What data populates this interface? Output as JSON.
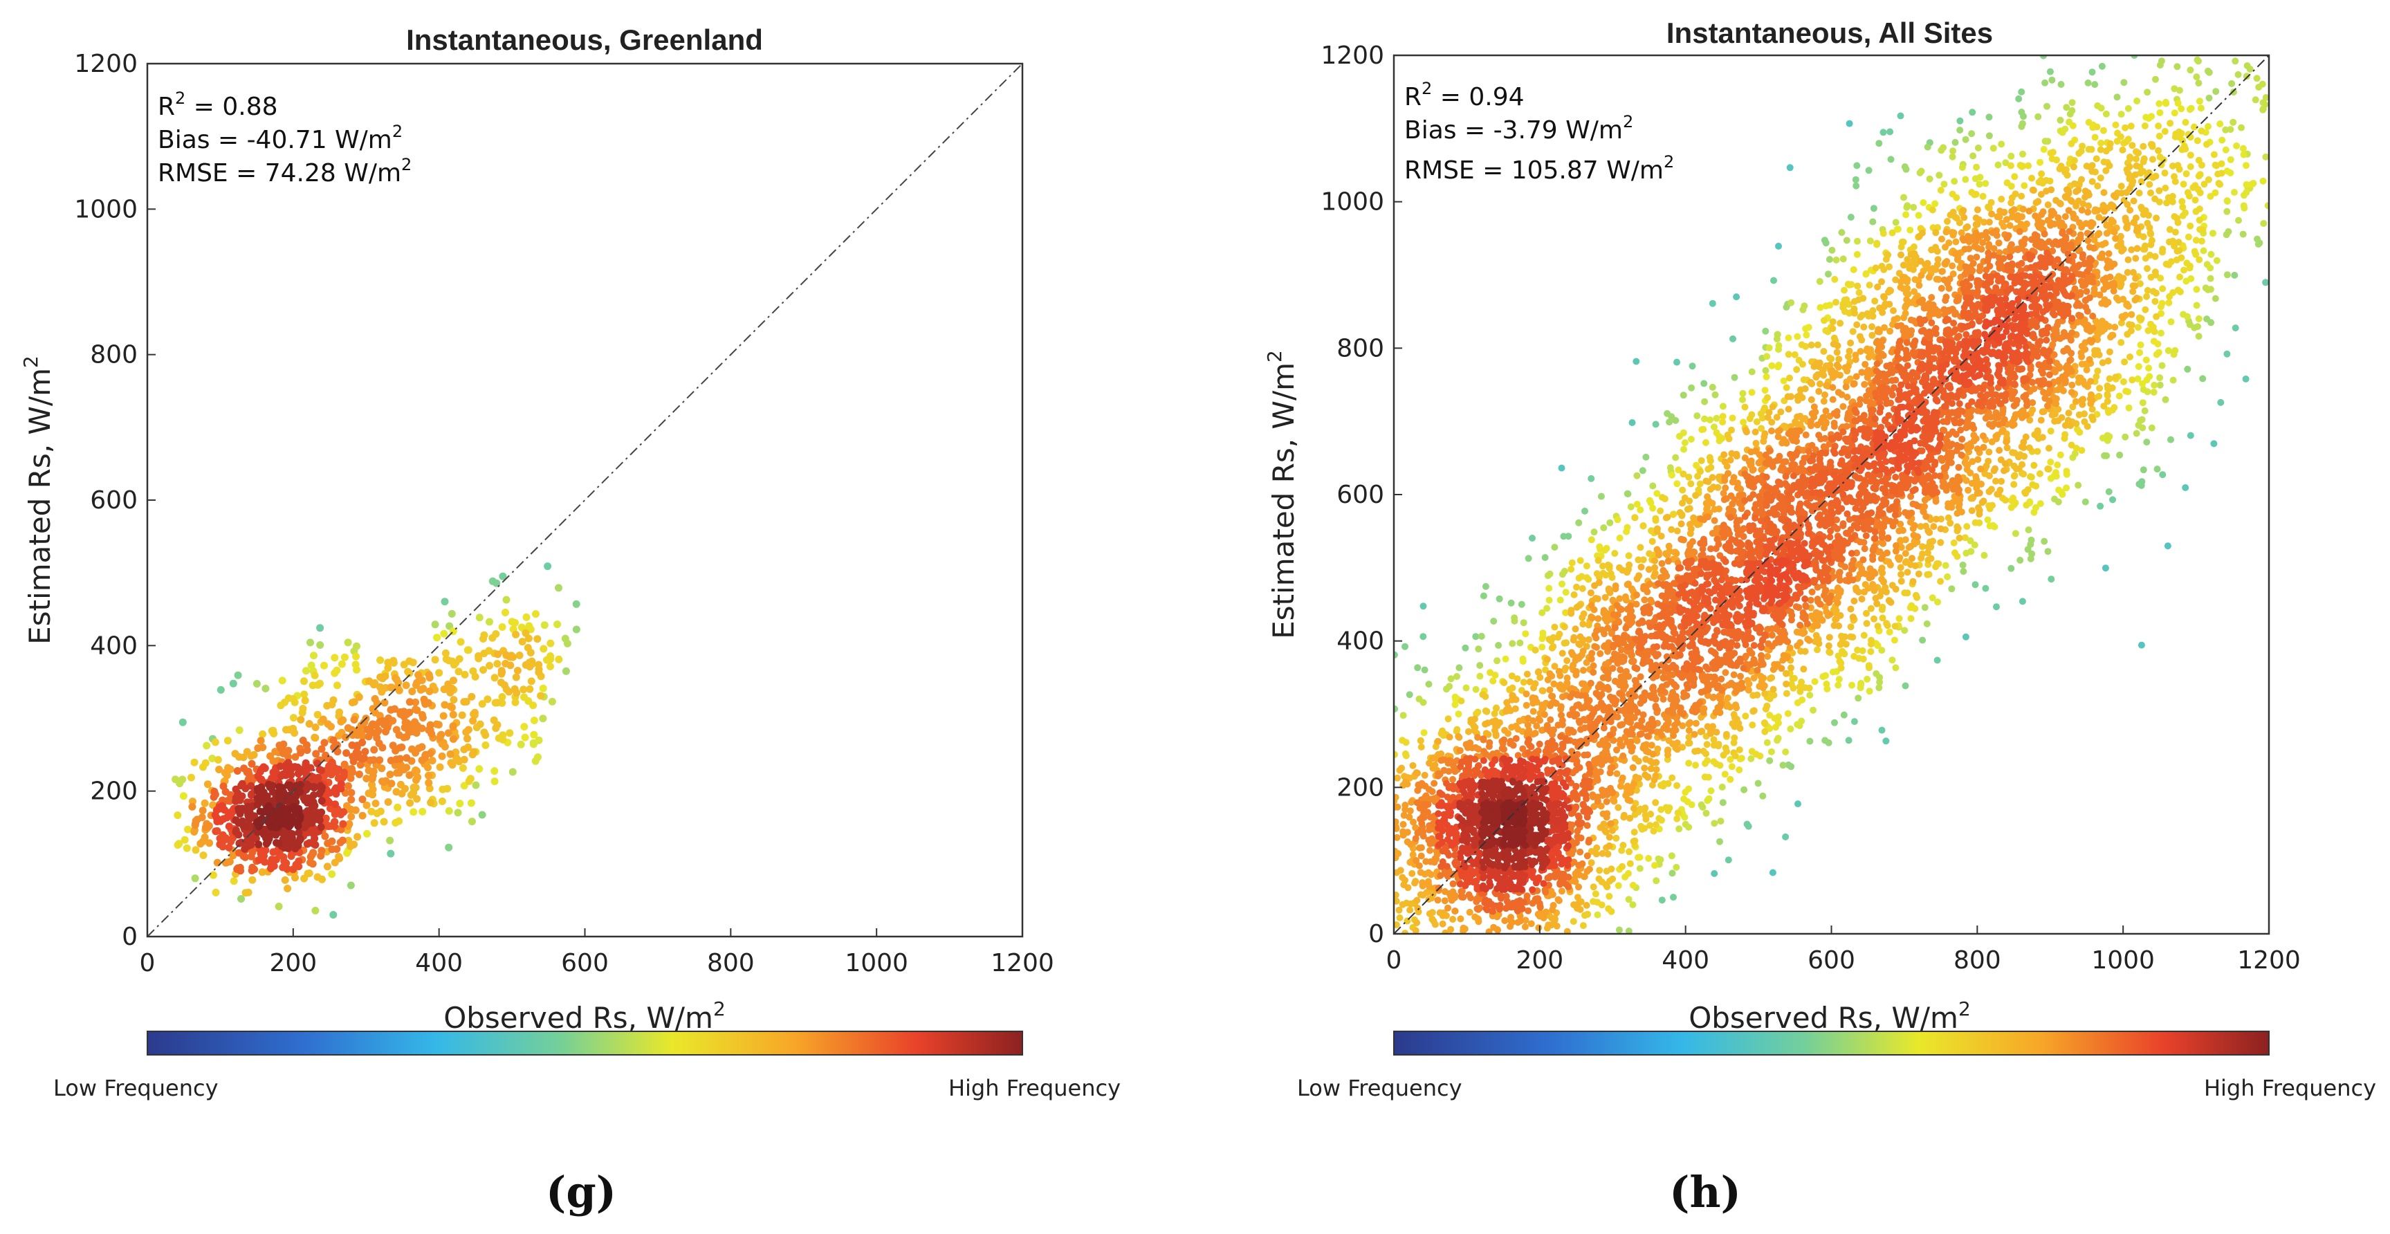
{
  "colorscale": [
    "#2c3a8c",
    "#2f6fd0",
    "#35b8e8",
    "#74cf9a",
    "#e9e82a",
    "#f7a628",
    "#e8422a",
    "#8c2121"
  ],
  "chart_data": [
    {
      "type": "scatter",
      "density_colored": true,
      "title": "Instantaneous, Greenland",
      "xlabel": "Observed Rs, W/m",
      "ylabel": "Estimated Rs, W/m",
      "unit_sup": "2",
      "xlim": [
        0,
        1200
      ],
      "ylim": [
        0,
        1200
      ],
      "xticks": [
        "0",
        "200",
        "400",
        "600",
        "800",
        "1000",
        "1200"
      ],
      "yticks": [
        "0",
        "200",
        "400",
        "600",
        "800",
        "1000",
        "1200"
      ],
      "stats": {
        "r2": "R",
        "r2_sup": "2",
        "r2_val": " = 0.88",
        "bias": "Bias = -40.71 W/m",
        "rmse": "RMSE = 74.28 W/m"
      },
      "identity_line": true,
      "colorbar_low": "Low Frequency",
      "colorbar_high": "High Frequency",
      "panel_label": "(g)",
      "n_points": 1300,
      "point_cloud": {
        "clusters": [
          {
            "x": 180,
            "y": 165,
            "sx": 55,
            "sy": 45,
            "w": 0.55
          },
          {
            "x": 330,
            "y": 280,
            "sx": 90,
            "sy": 60,
            "w": 0.35
          },
          {
            "x": 500,
            "y": 380,
            "sx": 45,
            "sy": 50,
            "w": 0.1
          }
        ],
        "x_range": [
          0,
          620
        ],
        "y_range": [
          0,
          520
        ]
      }
    },
    {
      "type": "scatter",
      "density_colored": true,
      "title": "Instantaneous, All Sites",
      "xlabel": "Observed Rs, W/m",
      "ylabel": "Estimated Rs, W/m",
      "unit_sup": "2",
      "xlim": [
        0,
        1200
      ],
      "ylim": [
        0,
        1200
      ],
      "xticks": [
        "0",
        "200",
        "400",
        "600",
        "800",
        "1000",
        "1200"
      ],
      "yticks": [
        "0",
        "200",
        "400",
        "600",
        "800",
        "1000",
        "1200"
      ],
      "stats": {
        "r2": "R",
        "r2_sup": "2",
        "r2_val": " = 0.94",
        "bias": "Bias = -3.79 W/m",
        "rmse": "RMSE = 105.87 W/m"
      },
      "identity_line": true,
      "colorbar_low": "Low Frequency",
      "colorbar_high": "High Frequency",
      "panel_label": "(h)",
      "n_points": 9000,
      "point_cloud": {
        "clusters": [
          {
            "x": 550,
            "y": 540,
            "sx": 300,
            "sy": 300,
            "along_identity": true,
            "spread": 95,
            "w": 0.75
          },
          {
            "x": 150,
            "y": 140,
            "sx": 70,
            "sy": 70,
            "w": 0.15
          },
          {
            "x": 850,
            "y": 840,
            "sx": 120,
            "sy": 120,
            "w": 0.1
          }
        ],
        "x_range": [
          0,
          1200
        ],
        "y_range": [
          0,
          1200
        ]
      }
    }
  ]
}
